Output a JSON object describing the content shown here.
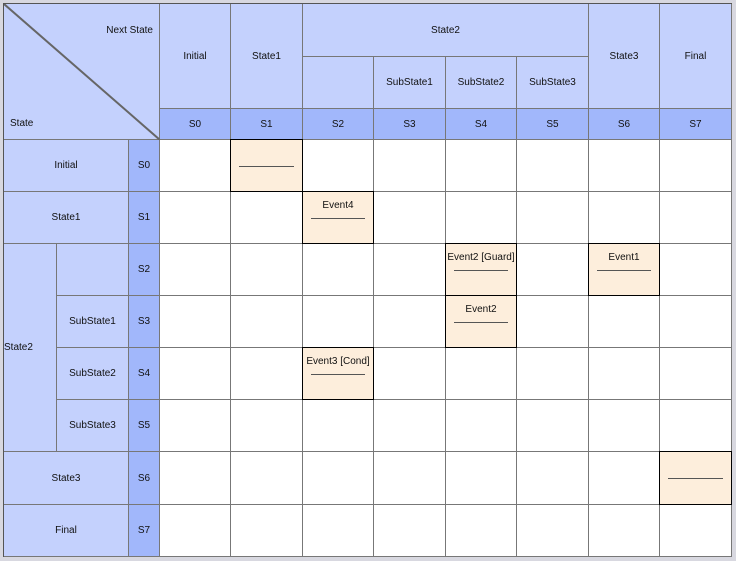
{
  "corner": {
    "next_state_label": "Next State",
    "state_label": "State"
  },
  "columns": [
    {
      "group": "",
      "name": "Initial",
      "code": "S0"
    },
    {
      "group": "",
      "name": "State1",
      "code": "S1"
    },
    {
      "group": "State2",
      "name": "",
      "code": "S2"
    },
    {
      "group": "State2",
      "name": "SubState1",
      "code": "S3"
    },
    {
      "group": "State2",
      "name": "SubState2",
      "code": "S4"
    },
    {
      "group": "State2",
      "name": "SubState3",
      "code": "S5"
    },
    {
      "group": "",
      "name": "State3",
      "code": "S6"
    },
    {
      "group": "",
      "name": "Final",
      "code": "S7"
    }
  ],
  "column_group": {
    "label": "State2"
  },
  "rows": [
    {
      "group": "",
      "name": "Initial",
      "code": "S0"
    },
    {
      "group": "",
      "name": "State1",
      "code": "S1"
    },
    {
      "group": "State2",
      "name": "",
      "code": "S2"
    },
    {
      "group": "State2",
      "name": "SubState1",
      "code": "S3"
    },
    {
      "group": "State2",
      "name": "SubState2",
      "code": "S4"
    },
    {
      "group": "State2",
      "name": "SubState3",
      "code": "S5"
    },
    {
      "group": "",
      "name": "State3",
      "code": "S6"
    },
    {
      "group": "",
      "name": "Final",
      "code": "S7"
    }
  ],
  "row_group": {
    "label": "State2"
  },
  "transitions": [
    {
      "from": "S0",
      "to": "S1",
      "event": ""
    },
    {
      "from": "S1",
      "to": "S2",
      "event": "Event4"
    },
    {
      "from": "S2",
      "to": "S4",
      "event": "Event2 [Guard]"
    },
    {
      "from": "S2",
      "to": "S6",
      "event": "Event1"
    },
    {
      "from": "S3",
      "to": "S4",
      "event": "Event2"
    },
    {
      "from": "S4",
      "to": "S2",
      "event": "Event3  [Cond]"
    },
    {
      "from": "S6",
      "to": "S7",
      "event": ""
    }
  ],
  "colors": {
    "header": "#c4d1fd",
    "code": "#a1b7fb",
    "transition_fill": "#fdeedc"
  }
}
